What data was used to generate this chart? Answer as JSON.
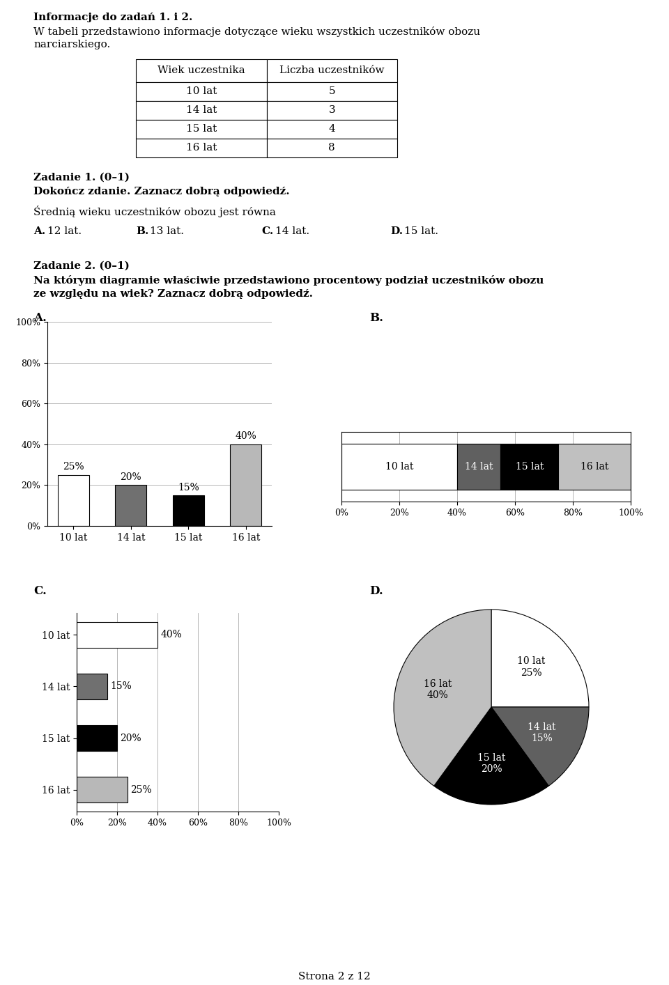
{
  "page_title": "Strona 2 z 12",
  "info_title": "Informacje do zadań 1. i 2.",
  "info_line1": "W tabeli przedstawiono informacje dotyczące wieku wszystkich uczestników obozu",
  "info_line2": "narciarskiego.",
  "table_headers": [
    "Wiek uczestnika",
    "Liczba uczestników"
  ],
  "table_data": [
    [
      "10 lat",
      "5"
    ],
    [
      "14 lat",
      "3"
    ],
    [
      "15 lat",
      "4"
    ],
    [
      "16 lat",
      "8"
    ]
  ],
  "task1_title": "Zadanie 1. (0–1)",
  "task1_subtitle": "Dokończ zdanie. Zaznacz dobrą odpowiedź.",
  "task1_text": "Średnią wieku uczestników obozu jest równa",
  "task1_opts_bold": [
    "A.",
    "B.",
    "C.",
    "D."
  ],
  "task1_opts_rest": [
    "12 lat.",
    "13 lat.",
    "14 lat.",
    "15 lat."
  ],
  "task2_title": "Zadanie 2. (0–1)",
  "task2_line1": "Na którym diagramie właściwie przedstawiono procentowy podział uczestników obozu",
  "task2_line2": "ze względu na wiek? Zaznacz dobrą odpowiedź.",
  "chart_labels": [
    "A.",
    "B.",
    "C.",
    "D."
  ],
  "ages": [
    "10 lat",
    "14 lat",
    "15 lat",
    "16 lat"
  ],
  "pcts": [
    25,
    20,
    15,
    40
  ],
  "colors_bars": [
    "#ffffff",
    "#707070",
    "#000000",
    "#b8b8b8"
  ],
  "colors_B": [
    "#ffffff",
    "#606060",
    "#000000",
    "#c0c0c0"
  ],
  "c_ages": [
    "16 lat",
    "15 lat",
    "14 lat",
    "10 lat"
  ],
  "c_pcts": [
    25,
    20,
    15,
    40
  ],
  "c_colors": [
    "#b8b8b8",
    "#000000",
    "#707070",
    "#ffffff"
  ],
  "d_pcts": [
    25,
    15,
    20,
    40
  ],
  "d_colors": [
    "#ffffff",
    "#606060",
    "#000000",
    "#c0c0c0"
  ],
  "background_color": "#ffffff",
  "fontsize_main": 11,
  "fontsize_chart": 10,
  "fontsize_tick": 9
}
